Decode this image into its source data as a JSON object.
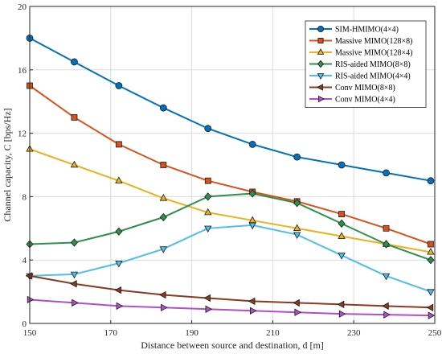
{
  "chart_data": {
    "type": "line",
    "xlabel": "Distance between source and destination, d [m]",
    "ylabel": "Channel capacity, C [bps/Hz]",
    "xlim": [
      150,
      250
    ],
    "ylim": [
      0,
      20
    ],
    "xticks": [
      150,
      170,
      190,
      210,
      230,
      250
    ],
    "yticks": [
      0,
      4,
      8,
      12,
      16,
      20
    ],
    "grid": true,
    "legend_position": "top-right",
    "x": [
      150,
      161,
      172,
      183,
      194,
      205,
      216,
      227,
      238,
      249
    ],
    "series": [
      {
        "name": "SIM-HMIMO(4×4)",
        "color": "#0072BD",
        "marker": "circle",
        "values": [
          18.0,
          16.5,
          15.0,
          13.6,
          12.3,
          11.3,
          10.5,
          10.0,
          9.5,
          9.0
        ]
      },
      {
        "name": "Massive MIMO(128×8)",
        "color": "#D95319",
        "marker": "square",
        "values": [
          15.0,
          13.0,
          11.3,
          10.0,
          9.0,
          8.3,
          7.7,
          6.9,
          6.0,
          5.0
        ]
      },
      {
        "name": "Massive MIMO(128×4)",
        "color": "#EDB120",
        "marker": "triangle-up",
        "values": [
          11.0,
          10.0,
          9.0,
          7.9,
          7.0,
          6.5,
          6.0,
          5.5,
          5.0,
          4.5
        ]
      },
      {
        "name": "RIS-aided MIMO(8×8)",
        "color": "#2F8F4F",
        "marker": "diamond",
        "values": [
          5.0,
          5.1,
          5.8,
          6.7,
          8.0,
          8.2,
          7.6,
          6.3,
          5.0,
          4.0
        ]
      },
      {
        "name": "RIS-aided MIMO(4×4)",
        "color": "#4DBEEE",
        "marker": "triangle-down",
        "values": [
          3.0,
          3.1,
          3.8,
          4.7,
          6.0,
          6.2,
          5.6,
          4.3,
          3.0,
          2.0
        ]
      },
      {
        "name": "Conv MIMO(8×8)",
        "color": "#8B3A1F",
        "marker": "triangle-left",
        "values": [
          3.0,
          2.5,
          2.1,
          1.8,
          1.6,
          1.4,
          1.3,
          1.2,
          1.1,
          1.0
        ]
      },
      {
        "name": "Conv MIMO(4×4)",
        "color": "#B04FC8",
        "marker": "triangle-right",
        "values": [
          1.5,
          1.3,
          1.1,
          1.0,
          0.9,
          0.8,
          0.7,
          0.6,
          0.55,
          0.5
        ]
      }
    ]
  }
}
